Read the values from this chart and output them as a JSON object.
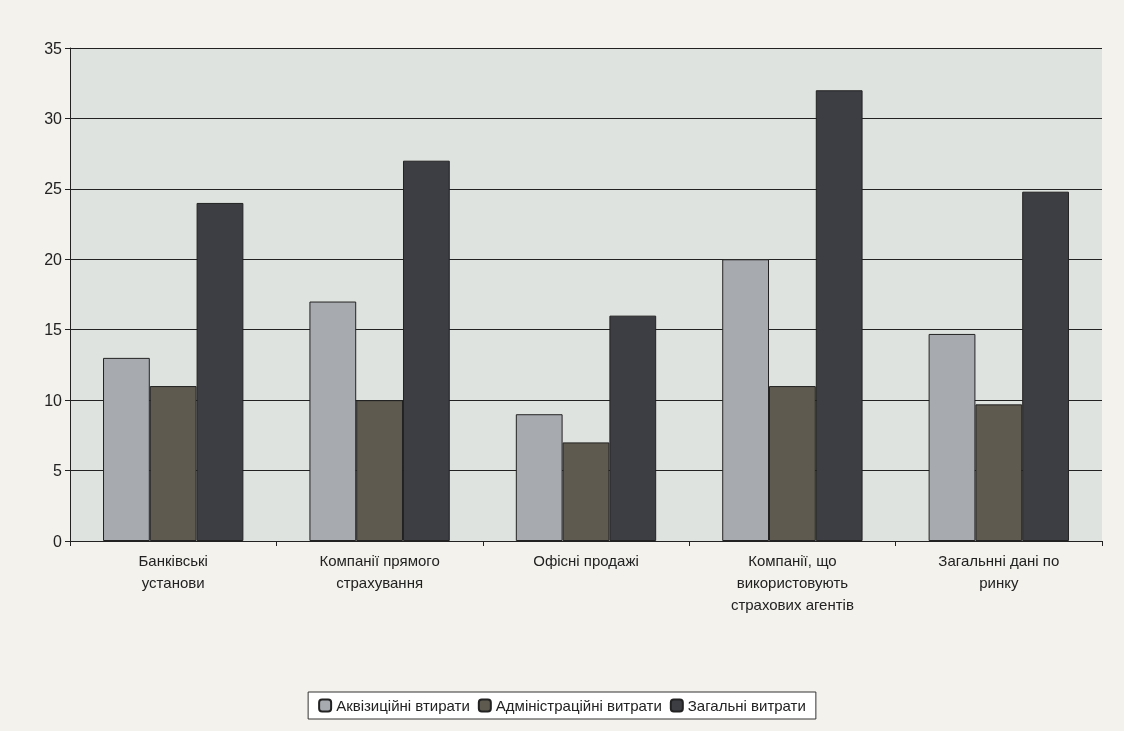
{
  "chart_data": {
    "type": "bar",
    "categories": [
      "Банківські\nустанови",
      "Компанії прямого\nстрахування",
      "Офісні продажі",
      "Компанії, що\nвикористовують\nстрахових агентів",
      "Загальнні дані по\nринку"
    ],
    "series": [
      {
        "name": "Аквізиційні втирати",
        "color": "#a7abb0",
        "values": [
          13,
          17,
          9,
          20,
          14.7
        ]
      },
      {
        "name": "Адміністраційні витрати",
        "color": "#5e5a50",
        "values": [
          11,
          10,
          7,
          11,
          9.7
        ]
      },
      {
        "name": "Загальні витрати",
        "color": "#3d3e44",
        "values": [
          24,
          27,
          16,
          32,
          24.8
        ]
      }
    ],
    "ylim": [
      0,
      35
    ],
    "yticks": [
      0,
      5,
      10,
      15,
      20,
      25,
      30,
      35
    ],
    "grid": "y",
    "legend": "bottom"
  }
}
